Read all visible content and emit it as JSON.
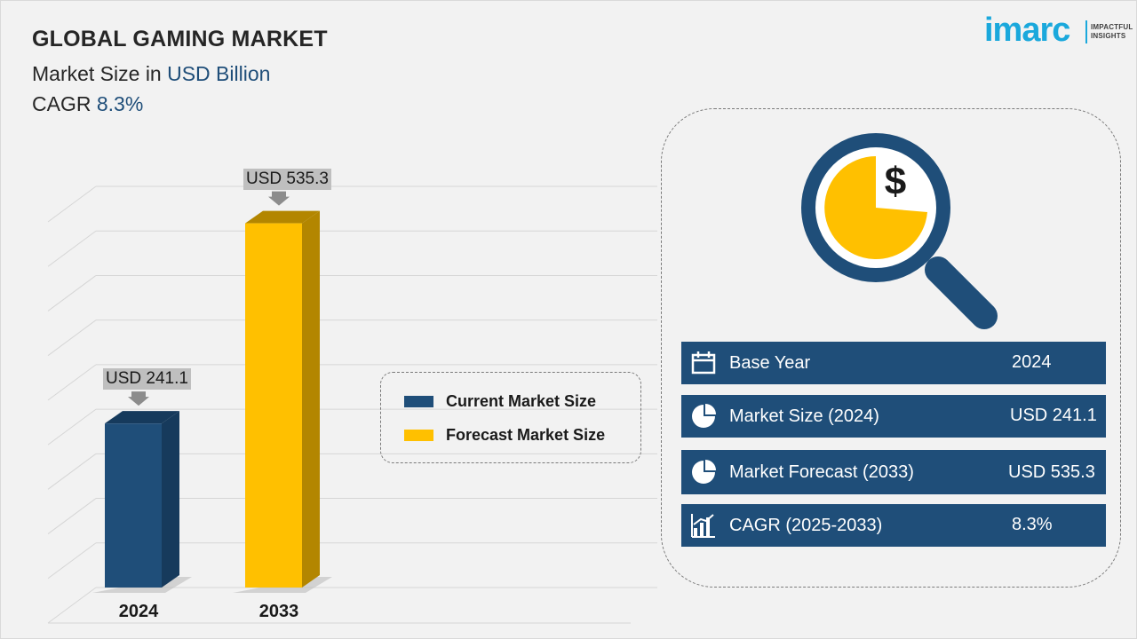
{
  "header": {
    "title": "GLOBAL GAMING MARKET",
    "subtitle_prefix": "Market Size in ",
    "subtitle_unit": "USD Billion",
    "cagr_prefix": "CAGR ",
    "cagr_value": "8.3%"
  },
  "logo": {
    "word": "imarc",
    "tag_line1": "IMPACTFUL",
    "tag_line2": "INSIGHTS",
    "color": "#1aa8dc"
  },
  "chart_data": {
    "type": "bar",
    "categories": [
      "2024",
      "2033"
    ],
    "values": [
      241.1,
      535.3
    ],
    "value_labels": [
      "USD 241.1",
      "USD 535.3"
    ],
    "series_colors": [
      "#1f4e79",
      "#ffc000"
    ],
    "title": "GLOBAL GAMING MARKET",
    "ylabel": "",
    "xlabel": "",
    "grid": true,
    "legend_position": "center-right"
  },
  "legend": {
    "items": [
      {
        "label": "Current Market Size",
        "color": "#1f4e79"
      },
      {
        "label": "Forecast Market Size",
        "color": "#ffc000"
      }
    ]
  },
  "panel": {
    "icon": "magnifier-dollar-pie-icon",
    "rows": [
      {
        "icon": "calendar-icon",
        "label": "Base Year",
        "value": "2024"
      },
      {
        "icon": "pie-chart-icon",
        "label": "Market Size (2024)",
        "value": "USD 241.1"
      },
      {
        "icon": "pie-chart-icon",
        "label": "Market Forecast (2033)",
        "value": "USD 535.3"
      },
      {
        "icon": "bar-chart-icon",
        "label": "CAGR (2025-2033)",
        "value": "8.3%"
      }
    ]
  }
}
